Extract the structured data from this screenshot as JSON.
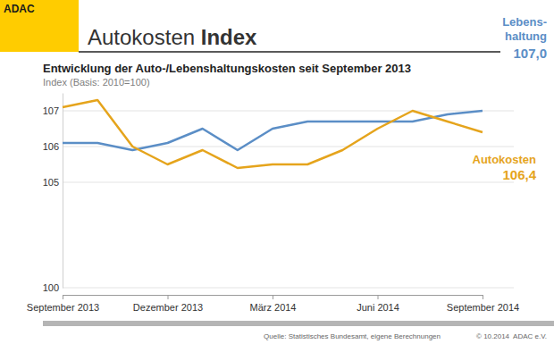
{
  "chart_data": {
    "type": "line",
    "logo": "ADAC",
    "title": "Autokosten Index",
    "subtitle": "Entwicklung der Auto-/Lebenshaltungskosten seit September 2013",
    "ylabel": "Index (Basis: 2010=100)",
    "source": "Quelle: Statistisches Bundesamt, eigene Berechnungen",
    "copyright": "© 10.2014  ADAC e.V.",
    "categories": [
      "September 2013",
      null,
      null,
      "Dezember 2013",
      null,
      null,
      "März 2014",
      null,
      null,
      "Juni 2014",
      null,
      null,
      "September 2014"
    ],
    "series": [
      {
        "name": "Lebens-\nhaltung",
        "color": "#5b8ec6",
        "values": [
          106.1,
          106.1,
          105.9,
          106.1,
          106.5,
          105.9,
          106.5,
          106.7,
          106.7,
          106.7,
          106.7,
          106.9,
          107.0
        ],
        "value_labels": [
          null,
          null,
          null,
          null,
          null,
          null,
          null,
          null,
          null,
          null,
          null,
          null,
          "107,0"
        ]
      },
      {
        "name": "Autokosten",
        "color": "#e5a41c",
        "values": [
          107.1,
          107.3,
          106.0,
          105.5,
          105.9,
          105.4,
          105.5,
          105.5,
          105.9,
          106.5,
          107.0,
          106.7,
          106.4
        ],
        "value_labels": [
          null,
          null,
          null,
          null,
          null,
          null,
          null,
          null,
          null,
          null,
          null,
          null,
          "106,4"
        ]
      }
    ],
    "ylim": [
      100,
      107.5
    ],
    "yticks": [
      100,
      105,
      106,
      107
    ],
    "grid": true
  }
}
